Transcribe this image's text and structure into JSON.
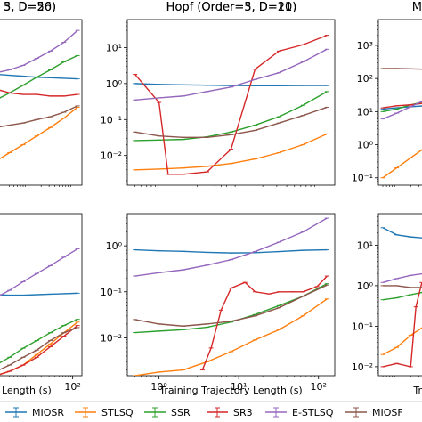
{
  "chart_data": [
    {
      "type": "line",
      "title": "5, D=56)",
      "xscale": "log",
      "yscale": "log",
      "xlim": [
        0.4,
        160
      ],
      "ylim": [
        0.0015,
        60
      ],
      "xticks": [],
      "yticks": [],
      "xlabel": "",
      "series": [
        {
          "name": "MIOSR",
          "x": [
            0.5,
            1.0,
            2.0,
            4.0,
            8.0,
            16,
            32,
            64,
            128
          ],
          "y": [
            2.0,
            1.9,
            1.8,
            1.7,
            1.6,
            1.5,
            1.45,
            1.4,
            1.35
          ]
        },
        {
          "name": "STLSQ",
          "x": [
            0.5,
            1.0,
            2.0,
            4.0,
            8.0,
            16,
            32,
            64,
            128
          ],
          "y": [
            0.004,
            0.005,
            0.007,
            0.012,
            0.02,
            0.035,
            0.06,
            0.11,
            0.22
          ]
        },
        {
          "name": "SSR",
          "x": [
            0.5,
            1.0,
            2.0,
            4.0,
            8.0,
            16,
            32,
            64,
            128
          ],
          "y": [
            0.12,
            0.2,
            0.35,
            0.55,
            0.9,
            1.5,
            2.4,
            4.0,
            6.0
          ]
        },
        {
          "name": "SR3",
          "x": [
            0.5,
            1.0,
            2.0,
            4.0,
            8.0,
            16,
            32,
            64,
            128
          ],
          "y": [
            1.3,
            0.9,
            0.7,
            0.55,
            0.5,
            0.5,
            0.45,
            0.45,
            0.5
          ]
        },
        {
          "name": "E-STLSQ",
          "x": [
            0.5,
            1.0,
            2.0,
            4.0,
            8.0,
            16,
            32,
            64,
            128
          ],
          "y": [
            1.6,
            1.8,
            2.0,
            2.4,
            3.2,
            5.0,
            8.0,
            14,
            30
          ]
        },
        {
          "name": "MIOSR",
          "x": [
            0.5,
            1.0,
            2.0,
            4.0,
            8.0,
            16,
            32,
            64,
            128
          ],
          "y": [
            0.04,
            0.05,
            0.06,
            0.07,
            0.08,
            0.1,
            0.12,
            0.16,
            0.24
          ]
        }
      ]
    },
    {
      "type": "line",
      "title": "Hopf (Order=5, D=21)",
      "xscale": "log",
      "yscale": "log",
      "xlim": [
        0.4,
        160
      ],
      "ylim": [
        0.0015,
        60
      ],
      "xticks": [],
      "yticks": [
        0.01,
        0.1,
        1,
        10
      ],
      "yticklabels": [
        "10⁻²",
        "10⁻¹",
        "10⁰",
        "10¹"
      ],
      "xlabel": "",
      "series": [
        {
          "name": "MIOSR",
          "x": [
            0.5,
            1.0,
            2.0,
            4.0,
            8.0,
            16,
            32,
            64,
            128
          ],
          "y": [
            1.0,
            0.95,
            0.92,
            0.9,
            0.88,
            0.87,
            0.87,
            0.88,
            0.88
          ]
        },
        {
          "name": "STLSQ",
          "x": [
            0.5,
            1.0,
            2.0,
            4.0,
            8.0,
            16,
            32,
            64,
            128
          ],
          "y": [
            0.004,
            0.0042,
            0.0045,
            0.005,
            0.006,
            0.008,
            0.012,
            0.02,
            0.04
          ]
        },
        {
          "name": "SSR",
          "x": [
            0.5,
            1.0,
            2.0,
            4.0,
            8.0,
            16,
            32,
            64,
            128
          ],
          "y": [
            0.026,
            0.027,
            0.028,
            0.033,
            0.045,
            0.07,
            0.12,
            0.25,
            0.6
          ]
        },
        {
          "name": "SR3",
          "x": [
            0.5,
            1.0,
            1.3,
            2.0,
            4.0,
            8.0,
            16,
            32,
            64,
            128
          ],
          "y": [
            1.8,
            0.3,
            0.003,
            0.003,
            0.0035,
            0.015,
            2.5,
            8.0,
            12.0,
            22.0
          ]
        },
        {
          "name": "E-STLSQ",
          "x": [
            0.5,
            1.0,
            2.0,
            4.0,
            8.0,
            16,
            32,
            64,
            128
          ],
          "y": [
            0.35,
            0.4,
            0.45,
            0.6,
            0.8,
            1.3,
            2.0,
            4.0,
            9.0
          ]
        },
        {
          "name": "MIOSR",
          "x": [
            0.5,
            1.0,
            2.0,
            4.0,
            8.0,
            16,
            32,
            64,
            128
          ],
          "y": [
            0.045,
            0.035,
            0.032,
            0.032,
            0.038,
            0.05,
            0.08,
            0.13,
            0.22
          ]
        }
      ]
    },
    {
      "type": "line",
      "title": "",
      "xscale": "log",
      "yscale": "log",
      "xlim": [
        0.4,
        160
      ],
      "ylim": [
        0.06,
        6000
      ],
      "xticks": [],
      "yticks": [
        0.1,
        1,
        10,
        100,
        1000
      ],
      "yticklabels": [
        "10⁻¹",
        "10⁰",
        "10¹",
        "10²",
        "10³"
      ],
      "xlabel": "",
      "series": [
        {
          "name": "MIOSR",
          "x": [
            0.5,
            1.0,
            2.0,
            4.0
          ],
          "y": [
            12,
            13,
            14,
            15
          ]
        },
        {
          "name": "STLSQ",
          "x": [
            0.5,
            1.0,
            2.0,
            4.0
          ],
          "y": [
            0.1,
            0.2,
            0.4,
            0.8
          ]
        },
        {
          "name": "SSR",
          "x": [
            0.5,
            1.0,
            2.0,
            4.0
          ],
          "y": [
            10,
            12,
            16,
            20
          ]
        },
        {
          "name": "SR3",
          "x": [
            0.5,
            1.0,
            2.0,
            4.0
          ],
          "y": [
            13,
            15,
            16,
            18
          ]
        },
        {
          "name": "E-STLSQ",
          "x": [
            0.5,
            1.0,
            2.0,
            4.0
          ],
          "y": [
            6,
            9,
            14,
            22
          ]
        },
        {
          "name": "MIOSR",
          "x": [
            0.5,
            1.0,
            2.0,
            4.0
          ],
          "y": [
            200,
            200,
            195,
            190
          ]
        }
      ]
    },
    {
      "type": "line",
      "title": "3, D=20)",
      "xscale": "log",
      "yscale": "log",
      "xlim": [
        0.4,
        160
      ],
      "ylim": [
        0.0015,
        60
      ],
      "xticks": [
        100
      ],
      "xticklabels": [
        "10²"
      ],
      "yticks": [],
      "xlabel": "Length (s)",
      "series": [
        {
          "name": "MIOSR",
          "x": [
            0.5,
            1.0,
            2.0,
            4.0,
            8.0,
            16,
            32,
            64,
            128
          ],
          "y": [
            0.3,
            0.31,
            0.3,
            0.29,
            0.29,
            0.3,
            0.31,
            0.32,
            0.33
          ]
        },
        {
          "name": "STLSQ",
          "x": [
            0.5,
            1.0,
            2.0,
            4.0,
            8.0,
            16,
            32,
            64,
            128
          ],
          "y": [
            0.001,
            0.0012,
            0.0015,
            0.002,
            0.003,
            0.006,
            0.012,
            0.025,
            0.05
          ]
        },
        {
          "name": "SSR",
          "x": [
            0.5,
            1.0,
            2.0,
            4.0,
            8.0,
            16,
            32,
            64,
            128
          ],
          "y": [
            0.0015,
            0.002,
            0.003,
            0.005,
            0.009,
            0.015,
            0.025,
            0.04,
            0.06
          ]
        },
        {
          "name": "SR3",
          "x": [
            0.5,
            1.0,
            2.0,
            4.0,
            8.0,
            16,
            32,
            64,
            128
          ],
          "y": [
            0.001,
            0.0012,
            0.0015,
            0.002,
            0.003,
            0.005,
            0.01,
            0.02,
            0.04
          ]
        },
        {
          "name": "E-STLSQ",
          "x": [
            0.5,
            1.0,
            2.0,
            4.0,
            8.0,
            16,
            32,
            64,
            128
          ],
          "y": [
            0.12,
            0.18,
            0.25,
            0.4,
            0.7,
            1.2,
            2.0,
            3.5,
            6.0
          ]
        },
        {
          "name": "MIOSR",
          "x": [
            0.5,
            1.0,
            2.0,
            4.0,
            8.0,
            16,
            32,
            64,
            128
          ],
          "y": [
            0.0012,
            0.0015,
            0.002,
            0.003,
            0.005,
            0.008,
            0.015,
            0.025,
            0.035
          ]
        }
      ]
    },
    {
      "type": "line",
      "title": "Hopf (Order=3, D=10)",
      "xscale": "log",
      "yscale": "log",
      "xlim": [
        0.4,
        160
      ],
      "ylim": [
        0.0015,
        5
      ],
      "xticks": [
        1,
        10,
        100
      ],
      "xticklabels": [
        "10⁰",
        "10¹",
        "10²"
      ],
      "yticks": [
        0.01,
        0.1,
        1
      ],
      "yticklabels": [
        "10⁻²",
        "10⁻¹",
        "10⁰"
      ],
      "xlabel": "Training Trajectory Length (s)",
      "series": [
        {
          "name": "MIOSR",
          "x": [
            0.5,
            1.0,
            2.0,
            4.0,
            8.0,
            16,
            32,
            64,
            128
          ],
          "y": [
            0.82,
            0.78,
            0.76,
            0.72,
            0.7,
            0.71,
            0.75,
            0.8,
            0.82
          ]
        },
        {
          "name": "STLSQ",
          "x": [
            0.5,
            1.0,
            2.0,
            4.0,
            8.0,
            16,
            32,
            64,
            128
          ],
          "y": [
            0.0015,
            0.0018,
            0.002,
            0.003,
            0.005,
            0.009,
            0.015,
            0.03,
            0.07
          ]
        },
        {
          "name": "SSR",
          "x": [
            0.5,
            1.0,
            2.0,
            4.0,
            8.0,
            16,
            32,
            64,
            128
          ],
          "y": [
            0.013,
            0.014,
            0.015,
            0.017,
            0.022,
            0.032,
            0.05,
            0.08,
            0.15
          ]
        },
        {
          "name": "SR3",
          "x": [
            3.5,
            4.5,
            6.0,
            8.0,
            12,
            16,
            24,
            32,
            48,
            64,
            96,
            128
          ],
          "y": [
            0.002,
            0.006,
            0.04,
            0.12,
            0.16,
            0.1,
            0.09,
            0.1,
            0.1,
            0.1,
            0.13,
            0.22
          ]
        },
        {
          "name": "E-STLSQ",
          "x": [
            0.5,
            1.0,
            2.0,
            4.0,
            8.0,
            16,
            32,
            64,
            128
          ],
          "y": [
            0.22,
            0.26,
            0.3,
            0.38,
            0.5,
            0.75,
            1.2,
            2.0,
            4.0
          ]
        },
        {
          "name": "MIOSR",
          "x": [
            0.5,
            1.0,
            2.0,
            4.0,
            8.0,
            16,
            32,
            64,
            128
          ],
          "y": [
            0.025,
            0.02,
            0.018,
            0.02,
            0.023,
            0.03,
            0.045,
            0.08,
            0.14
          ]
        }
      ]
    },
    {
      "type": "line",
      "title": "M",
      "xscale": "log",
      "yscale": "log",
      "xlim": [
        0.4,
        160
      ],
      "ylim": [
        0.006,
        60
      ],
      "xticks": [],
      "yticks": [
        0.01,
        0.1,
        1,
        10
      ],
      "yticklabels": [
        "10⁻²",
        "10⁻¹",
        "10⁰",
        "10¹"
      ],
      "xlabel": "Tr",
      "series": [
        {
          "name": "MIOSR",
          "x": [
            0.5,
            1.0,
            2.0,
            4.0
          ],
          "y": [
            27,
            18,
            16,
            15
          ]
        },
        {
          "name": "STLSQ",
          "x": [
            0.5,
            1.0,
            2.0,
            4.0
          ],
          "y": [
            0.02,
            0.03,
            0.06,
            0.1
          ]
        },
        {
          "name": "SSR",
          "x": [
            0.5,
            1.0,
            2.0,
            4.0
          ],
          "y": [
            0.45,
            0.5,
            0.6,
            0.7
          ]
        },
        {
          "name": "SR3",
          "x": [
            0.5,
            1.0,
            2.0,
            2.6,
            3.5
          ],
          "y": [
            0.01,
            0.012,
            0.01,
            0.3,
            1.2
          ]
        },
        {
          "name": "E-STLSQ",
          "x": [
            0.5,
            1.0,
            2.0,
            4.0
          ],
          "y": [
            1.2,
            1.5,
            1.8,
            2.0
          ]
        },
        {
          "name": "MIOSR",
          "x": [
            0.5,
            1.0,
            2.0,
            4.0
          ],
          "y": [
            1.0,
            1.0,
            0.9,
            0.9
          ]
        }
      ]
    }
  ],
  "legend": {
    "placement": "bottom",
    "items": [
      {
        "label": "MIOSR",
        "color": "#1f77b4"
      },
      {
        "label": "STLSQ",
        "color": "#ff7f0e"
      },
      {
        "label": "SSR",
        "color": "#2ca02c"
      },
      {
        "label": "SR3",
        "color": "#d62728"
      },
      {
        "label": "E-STLSQ",
        "color": "#9467bd"
      },
      {
        "label": "MIOSF",
        "color": "#8c564b"
      }
    ]
  }
}
